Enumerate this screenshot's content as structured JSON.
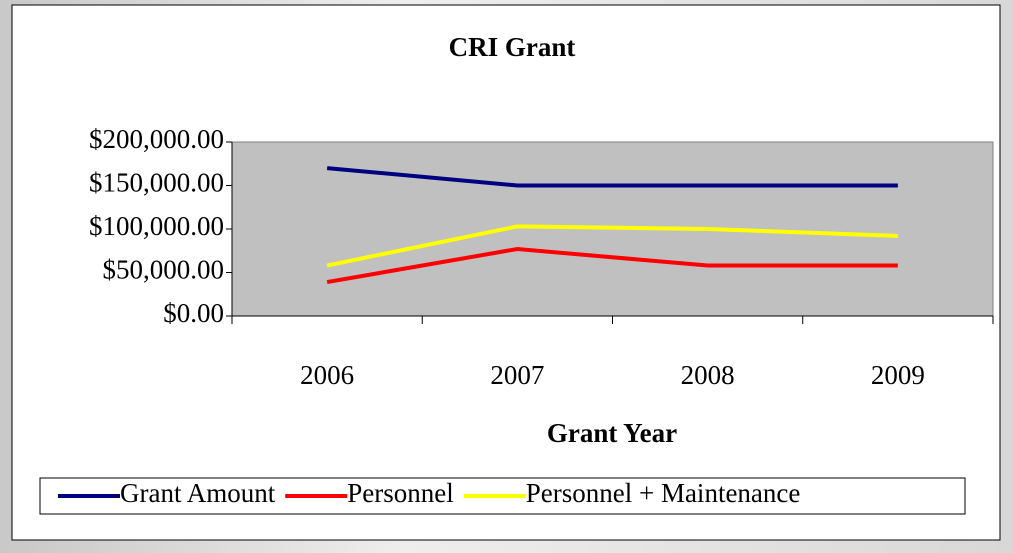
{
  "chart_data": {
    "type": "line",
    "title": "CRI Grant",
    "x_label": "Grant Year",
    "categories": [
      "2006",
      "2007",
      "2008",
      "2009"
    ],
    "series": [
      {
        "name": "Grant Amount",
        "color": "#000080",
        "values": [
          170000,
          150000,
          150000,
          150000
        ]
      },
      {
        "name": "Personnel",
        "color": "#ff0000",
        "values": [
          39000,
          77000,
          58000,
          58000
        ]
      },
      {
        "name": "Personnel + Maintenance",
        "color": "#ffff00",
        "values": [
          58000,
          103000,
          100000,
          92000
        ]
      }
    ],
    "ylim": [
      0,
      200000
    ],
    "yticks": [
      {
        "value": 0,
        "label": "$0.00"
      },
      {
        "value": 50000,
        "label": "$50,000.00"
      },
      {
        "value": 100000,
        "label": "$100,000.00"
      },
      {
        "value": 150000,
        "label": "$150,000.00"
      },
      {
        "value": 200000,
        "label": "$200,000.00"
      }
    ],
    "plot_background": "#c0c0c0",
    "legend": "bottom"
  }
}
